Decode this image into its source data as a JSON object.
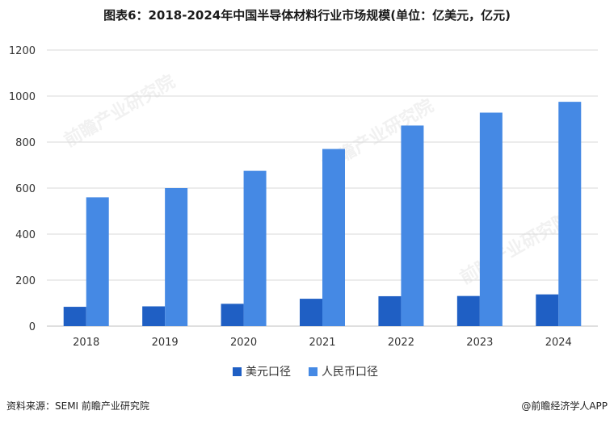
{
  "chart_data": {
    "type": "bar",
    "title": "图表6：2018-2024年中国半导体材料行业市场规模(单位：亿美元，亿元)",
    "categories": [
      "2018",
      "2019",
      "2020",
      "2021",
      "2022",
      "2023",
      "2024"
    ],
    "series": [
      {
        "name": "美元口径",
        "values": [
          84,
          86,
          97,
          119,
          130,
          131,
          138
        ],
        "color": "#1f5fc4"
      },
      {
        "name": "人民币口径",
        "values": [
          560,
          600,
          675,
          770,
          872,
          928,
          975
        ],
        "color": "#4589e4"
      }
    ],
    "ylim": [
      0,
      1200
    ],
    "yticks": [
      0,
      200,
      400,
      600,
      800,
      1000,
      1200
    ],
    "grid": true,
    "legend_position": "bottom"
  },
  "footer": {
    "source": "资料来源：SEMI 前瞻产业研究院",
    "credit": "@前瞻经济学人APP"
  },
  "watermark": {
    "text": "前瞻产业研究院"
  }
}
